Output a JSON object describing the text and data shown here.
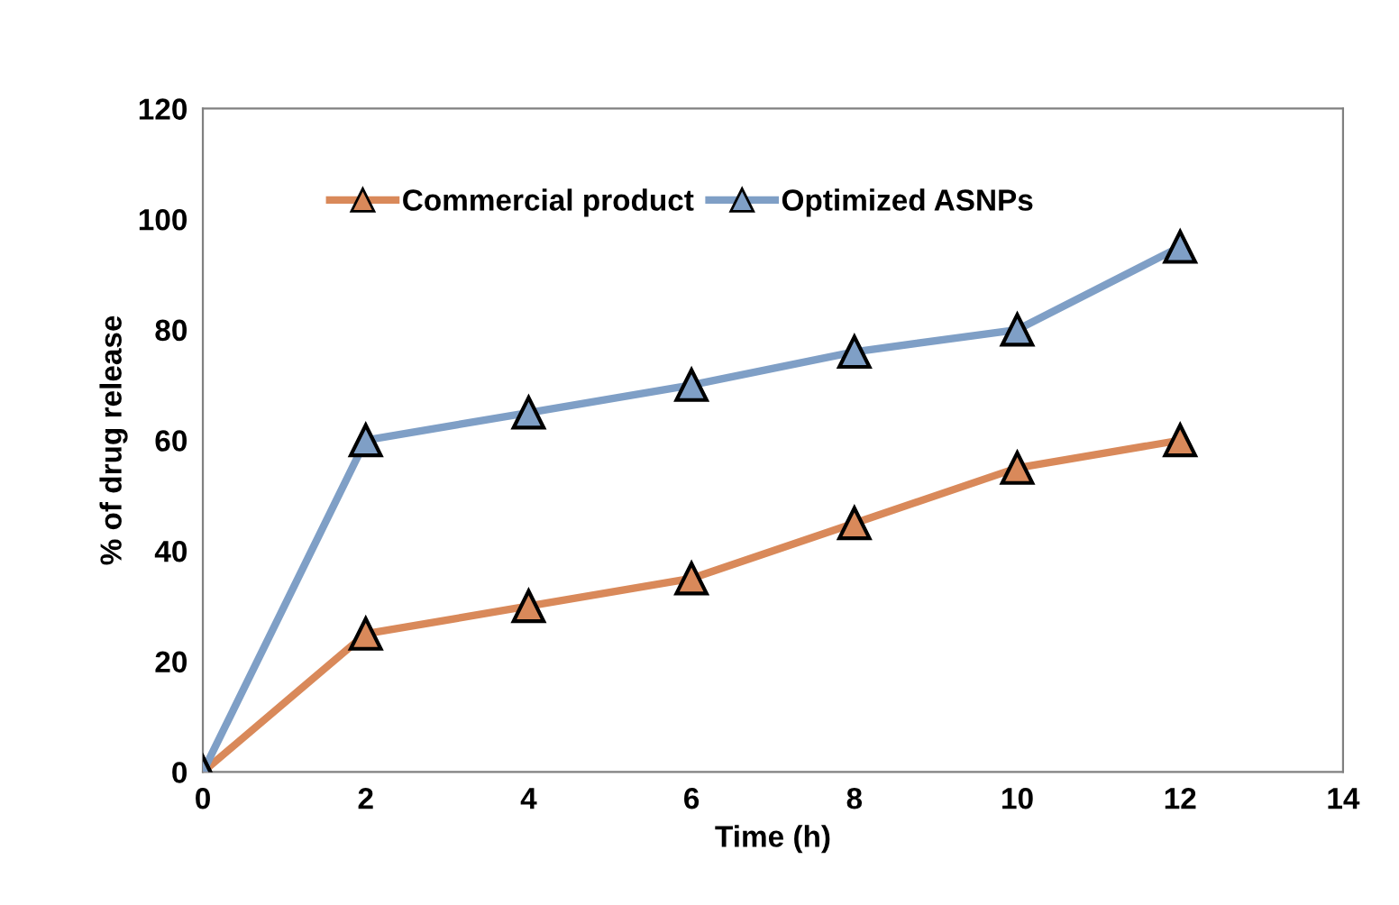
{
  "chart_data": {
    "type": "line",
    "xlabel": "Time (h)",
    "ylabel": "% of drug release",
    "x": [
      0,
      2,
      4,
      6,
      8,
      10,
      12
    ],
    "series": [
      {
        "name": "Commercial product",
        "color": "#d9895a",
        "values": [
          0,
          25,
          30,
          35,
          45,
          55,
          60
        ]
      },
      {
        "name": "Optimized ASNPs",
        "color": "#7f9fc6",
        "values": [
          0,
          60,
          65,
          70,
          76,
          80,
          95
        ]
      }
    ],
    "xlim": [
      0,
      14
    ],
    "xticks": [
      0,
      2,
      4,
      6,
      8,
      10,
      12,
      14
    ],
    "ylim": [
      0,
      120
    ],
    "yticks": [
      0,
      20,
      40,
      60,
      80,
      100,
      120
    ],
    "grid": false,
    "legend": "top",
    "marker": "triangle",
    "line_style": "solid"
  }
}
